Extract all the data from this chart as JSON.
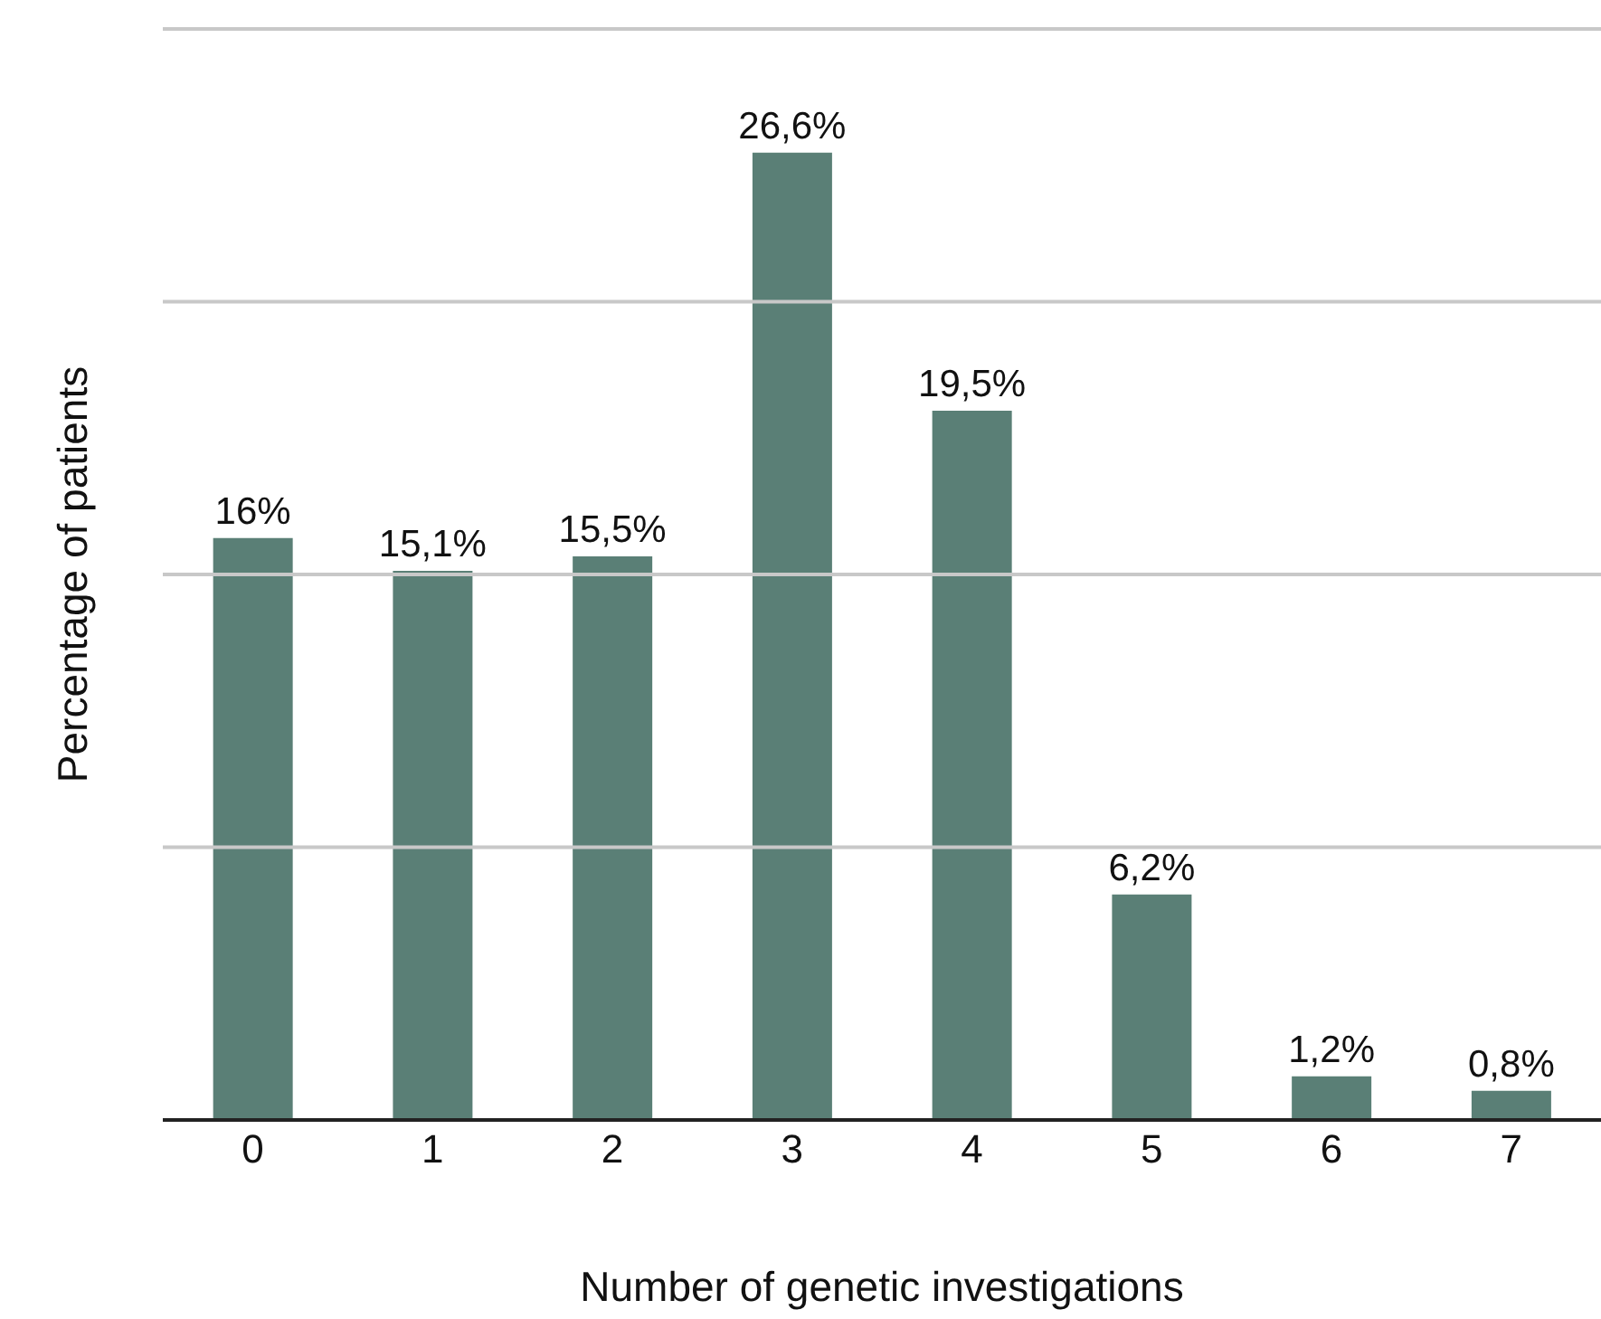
{
  "chart_data": {
    "type": "bar",
    "xlabel": "Number of genetic investigations",
    "ylabel": "Percentage of patients",
    "categories": [
      "0",
      "1",
      "2",
      "3",
      "4",
      "5",
      "6",
      "7"
    ],
    "values": [
      16,
      15.1,
      15.5,
      26.6,
      19.5,
      6.2,
      1.2,
      0.8
    ],
    "value_labels": [
      "16%",
      "15,1%",
      "15,5%",
      "26,6%",
      "19,5%",
      "6,2%",
      "1,2%",
      "0,8%"
    ],
    "color": "#5a7f76",
    "ylim": [
      0,
      30
    ],
    "yticks": [
      0,
      {
        "value": 7.5,
        "label": null
      },
      {
        "value": 15,
        "label": null
      },
      {
        "value": 22.5,
        "label": null
      },
      {
        "value": 30,
        "label": null
      }
    ],
    "grid": "y",
    "tick_labels": "x"
  }
}
